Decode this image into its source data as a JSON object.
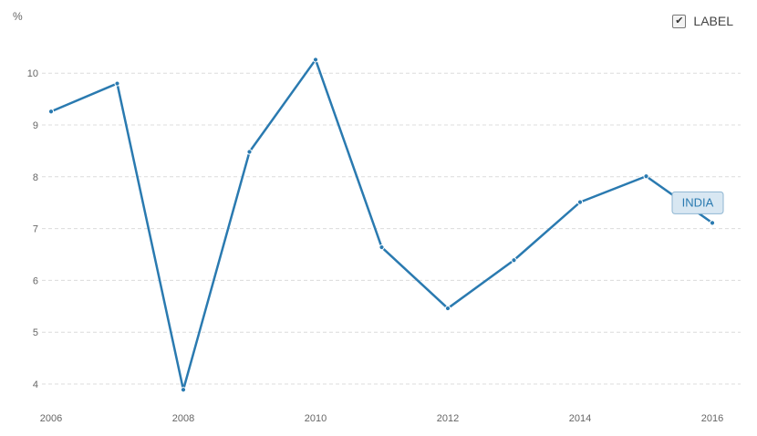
{
  "legend": {
    "label": "LABEL",
    "checked": true,
    "check_glyph": "✔"
  },
  "chart_data": {
    "type": "line",
    "ylabel": "%",
    "x": [
      2006,
      2007,
      2008,
      2009,
      2010,
      2011,
      2012,
      2013,
      2014,
      2015,
      2016
    ],
    "xticks": [
      2006,
      2008,
      2010,
      2012,
      2014,
      2016
    ],
    "yticks": [
      4,
      5,
      6,
      7,
      8,
      9,
      10
    ],
    "xlim": [
      2006,
      2016
    ],
    "ylim": [
      3.85,
      10.4
    ],
    "grid": true,
    "series": [
      {
        "name": "INDIA",
        "color": "#2a7ab0",
        "values": [
          9.26,
          9.8,
          3.89,
          8.48,
          10.26,
          6.64,
          5.46,
          6.39,
          7.51,
          8.01,
          7.11
        ]
      }
    ]
  }
}
